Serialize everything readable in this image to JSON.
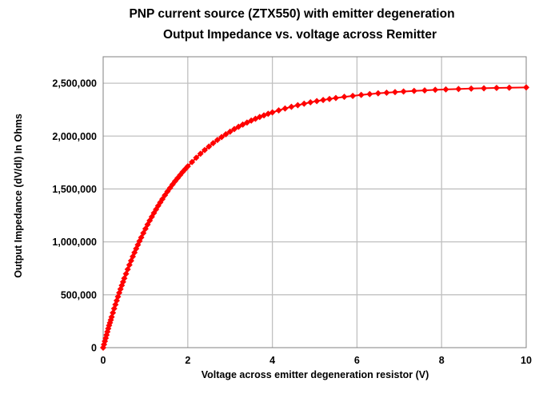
{
  "chart_data": {
    "type": "line",
    "title": [
      "PNP current source (ZTX550) with emitter degeneration",
      "Output Impedance  vs.  voltage across Remitter"
    ],
    "xlabel": "Voltage across emitter degeneration resistor (V)",
    "ylabel": "Output Impedance (dV/dI) In Ohms",
    "xlim": [
      0,
      10
    ],
    "ylim": [
      0,
      2750000
    ],
    "x_ticks": [
      0,
      2,
      4,
      6,
      8,
      10
    ],
    "x_tick_labels": [
      "0",
      "2",
      "4",
      "6",
      "8",
      "10"
    ],
    "y_ticks": [
      0,
      500000,
      1000000,
      1500000,
      2000000,
      2500000
    ],
    "y_tick_labels": [
      "0",
      "500,000",
      "1,000,000",
      "1,500,000",
      "2,000,000",
      "2,500,000"
    ],
    "grid": true,
    "legend": "none",
    "colors": {
      "series": "#ff0000",
      "grid": "#c0c0c0",
      "axis": "#808080"
    },
    "marker": "diamond",
    "series": [
      {
        "x": [
          0.0,
          0.02,
          0.04,
          0.06,
          0.08,
          0.1,
          0.12,
          0.14,
          0.16,
          0.18,
          0.2,
          0.23,
          0.26,
          0.29,
          0.32,
          0.35,
          0.38,
          0.41,
          0.44,
          0.47,
          0.5,
          0.54,
          0.58,
          0.62,
          0.66,
          0.7,
          0.74,
          0.78,
          0.82,
          0.86,
          0.9,
          0.95,
          1.0,
          1.05,
          1.1,
          1.15,
          1.2,
          1.25,
          1.3,
          1.35,
          1.4,
          1.46,
          1.52,
          1.58,
          1.64,
          1.7,
          1.76,
          1.82,
          1.88,
          1.94,
          2.0,
          2.1,
          2.2,
          2.3,
          2.4,
          2.5,
          2.6,
          2.7,
          2.8,
          2.9,
          3.0,
          3.1,
          3.2,
          3.3,
          3.4,
          3.5,
          3.6,
          3.7,
          3.8,
          3.9,
          4.0,
          4.15,
          4.3,
          4.45,
          4.6,
          4.75,
          4.9,
          5.05,
          5.2,
          5.35,
          5.5,
          5.7,
          5.9,
          6.1,
          6.3,
          6.5,
          6.7,
          6.9,
          7.1,
          7.35,
          7.6,
          7.85,
          8.1,
          8.4,
          8.7,
          9.0,
          9.3,
          9.6,
          10.0
        ],
        "y": [
          0,
          30000,
          60000,
          90000,
          120000,
          150000,
          180000,
          210000,
          235000,
          262000,
          290000,
          330000,
          369000,
          407000,
          445000,
          482000,
          518000,
          553000,
          588000,
          621000,
          655000,
          698000,
          740000,
          782000,
          822000,
          861000,
          899000,
          936000,
          972000,
          1008000,
          1042000,
          1083000,
          1124000,
          1163000,
          1201000,
          1237000,
          1273000,
          1307000,
          1341000,
          1373000,
          1404000,
          1441000,
          1476000,
          1509000,
          1542000,
          1573000,
          1603000,
          1632000,
          1661000,
          1688000,
          1714000,
          1755000,
          1795000,
          1833000,
          1868000,
          1901000,
          1933000,
          1963000,
          1991000,
          2017000,
          2042000,
          2066000,
          2088000,
          2109000,
          2128000,
          2147000,
          2164000,
          2181000,
          2196000,
          2211000,
          2224000,
          2243000,
          2261000,
          2277000,
          2292000,
          2306000,
          2319000,
          2331000,
          2341000,
          2351000,
          2360000,
          2371000,
          2380000,
          2389000,
          2397000,
          2404000,
          2410000,
          2416000,
          2421000,
          2427000,
          2432000,
          2437000,
          2441000,
          2445000,
          2449000,
          2452000,
          2455000,
          2457000,
          2460000
        ]
      }
    ]
  }
}
